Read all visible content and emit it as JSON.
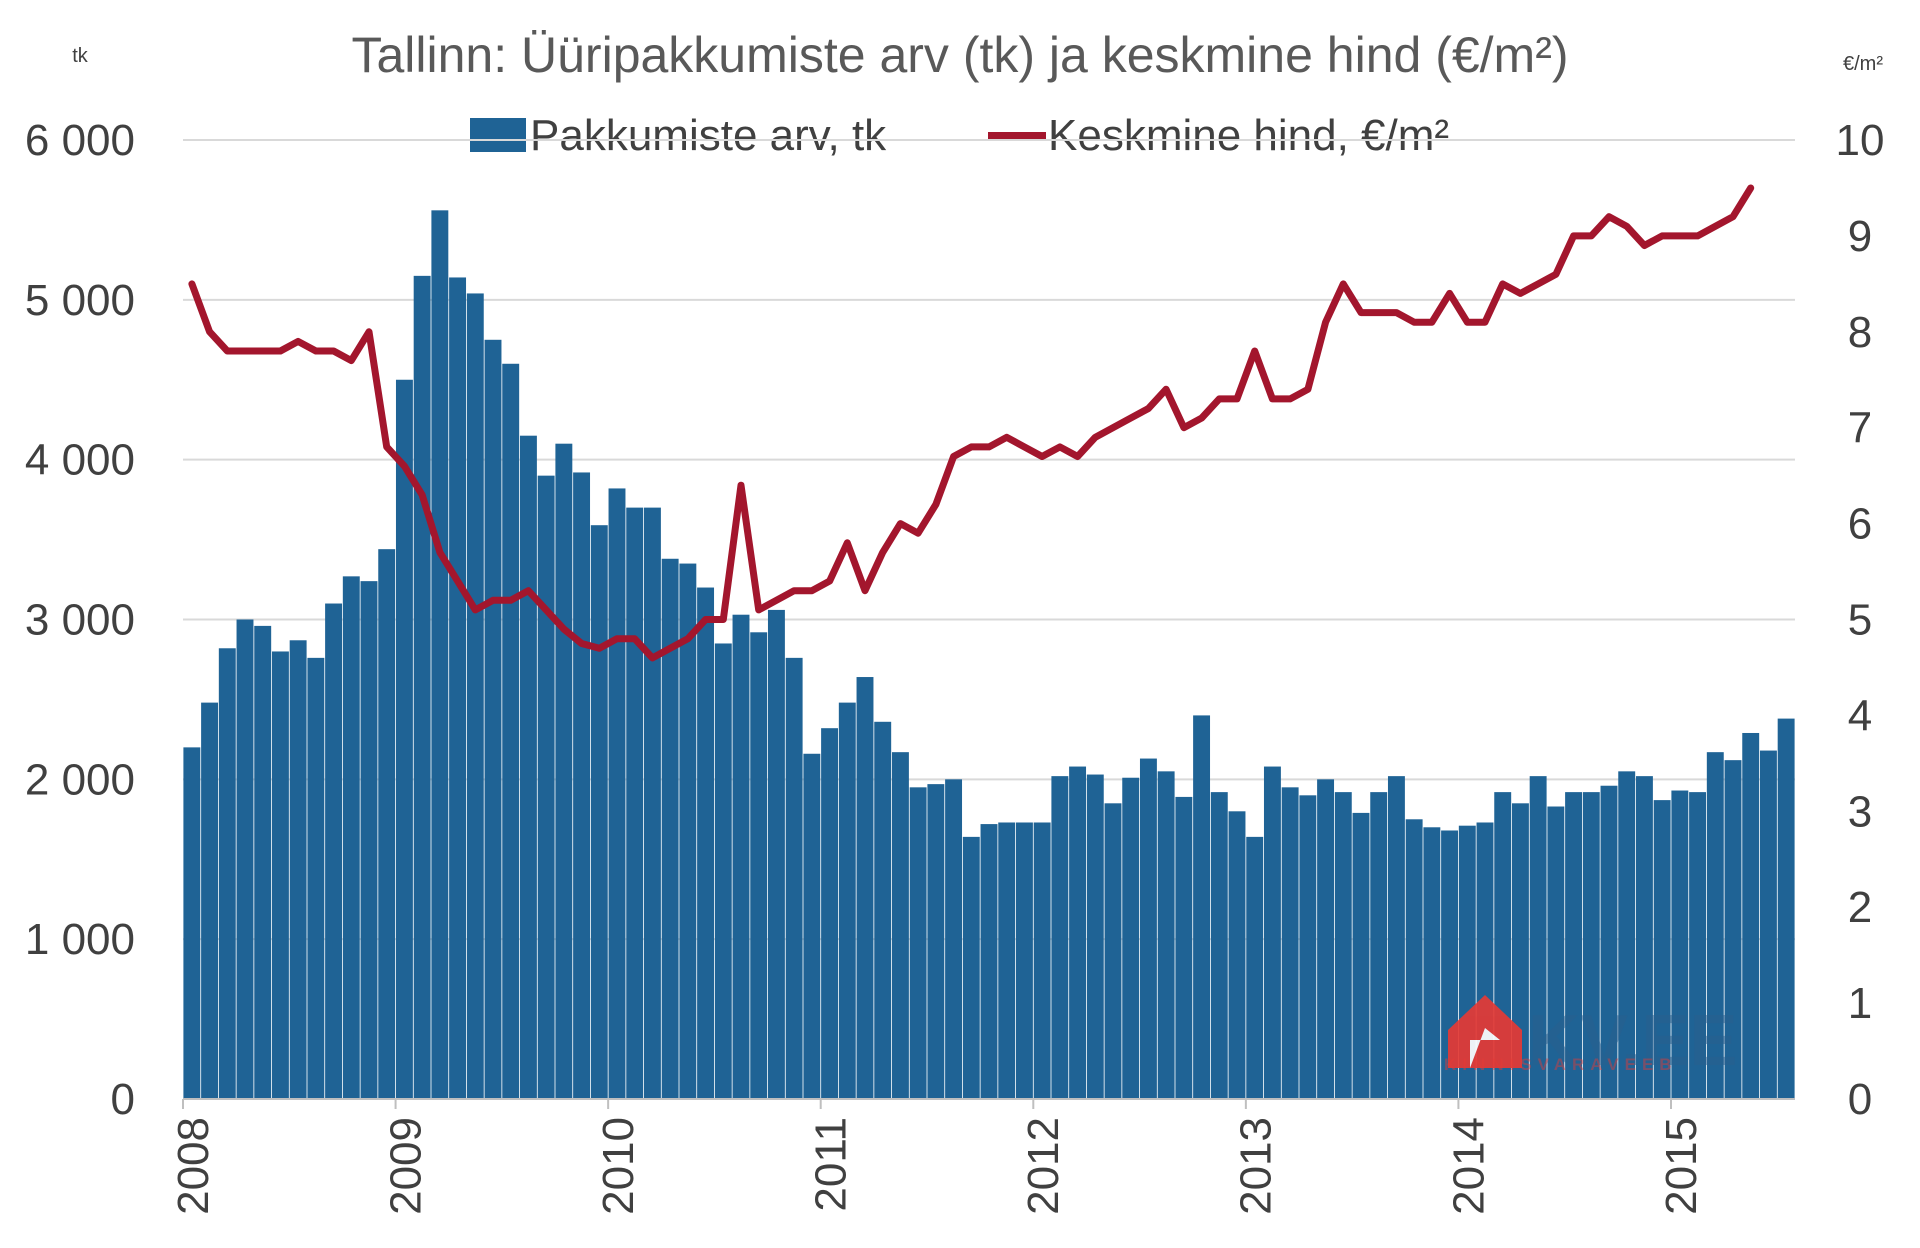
{
  "chart_data": {
    "type": "bar",
    "title": "Tallinn: Üüripakkumiste arv (tk) ja keskmine hind (€/m²)",
    "y_left_unit": "tk",
    "y_right_unit": "€/m²",
    "ylim_left": [
      0,
      6000
    ],
    "ylim_right": [
      0,
      10
    ],
    "y_left_ticks": [
      "0",
      "1 000",
      "2 000",
      "3 000",
      "4 000",
      "5 000",
      "6 000"
    ],
    "y_right_ticks": [
      "0",
      "1",
      "2",
      "3",
      "4",
      "5",
      "6",
      "7",
      "8",
      "9",
      "10"
    ],
    "x_ticks": [
      "2008",
      "2009",
      "2010",
      "2011",
      "2012",
      "2013",
      "2014",
      "2015"
    ],
    "grid": true,
    "legend_position": "top",
    "colors": {
      "bars": "#1f6395",
      "line": "#a3162d",
      "grid": "#d9d9d9",
      "logo": "#e53935"
    },
    "series": [
      {
        "name": "Pakkumiste arv, tk",
        "type": "bar",
        "axis": "left",
        "values": [
          2200,
          2480,
          2820,
          3000,
          2960,
          2800,
          2870,
          2760,
          3100,
          3270,
          3240,
          3440,
          4500,
          5150,
          5560,
          5140,
          5040,
          4750,
          4600,
          4150,
          3900,
          4100,
          3920,
          3590,
          3820,
          3700,
          3700,
          3380,
          3350,
          3200,
          2850,
          3030,
          2920,
          3060,
          2760,
          2160,
          2320,
          2480,
          2640,
          2360,
          2170,
          1950,
          1970,
          2000,
          1640,
          1720,
          1730,
          1730,
          1730,
          2020,
          2080,
          2030,
          1850,
          2010,
          2130,
          2050,
          1890,
          2400,
          1920,
          1800,
          1640,
          2080,
          1950,
          1900,
          2000,
          1920,
          1790,
          1920,
          2020,
          1750,
          1700,
          1680,
          1710,
          1730,
          1920,
          1850,
          2020,
          1830,
          1920,
          1920,
          1960,
          2050,
          2020,
          1870,
          1930,
          1920,
          2170,
          2120,
          2290,
          2180,
          2380
        ]
      },
      {
        "name": "Keskmine hind, €/m²",
        "type": "line",
        "axis": "right",
        "values": [
          8.5,
          8.0,
          7.8,
          7.8,
          7.8,
          7.8,
          7.9,
          7.8,
          7.8,
          7.7,
          8.0,
          6.8,
          6.6,
          6.3,
          5.7,
          5.4,
          5.1,
          5.2,
          5.2,
          5.3,
          5.1,
          4.9,
          4.75,
          4.7,
          4.8,
          4.8,
          4.6,
          4.7,
          4.8,
          5.0,
          5.0,
          6.4,
          5.1,
          5.2,
          5.3,
          5.3,
          5.4,
          5.8,
          5.3,
          5.7,
          6.0,
          5.9,
          6.2,
          6.7,
          6.8,
          6.8,
          6.9,
          6.8,
          6.7,
          6.8,
          6.7,
          6.9,
          7.0,
          7.1,
          7.2,
          7.4,
          7.0,
          7.1,
          7.3,
          7.3,
          7.8,
          7.3,
          7.3,
          7.4,
          8.1,
          8.5,
          8.2,
          8.2,
          8.2,
          8.1,
          8.1,
          8.4,
          8.1,
          8.1,
          8.5,
          8.4,
          8.5,
          8.6,
          9.0,
          9.0,
          9.2,
          9.1,
          8.9,
          9.0,
          9.0,
          9.0,
          9.1,
          9.2,
          9.5
        ]
      }
    ]
  },
  "logo": {
    "main_text": "KV.EE",
    "sub_text": "KINNISVARAVEEB"
  }
}
